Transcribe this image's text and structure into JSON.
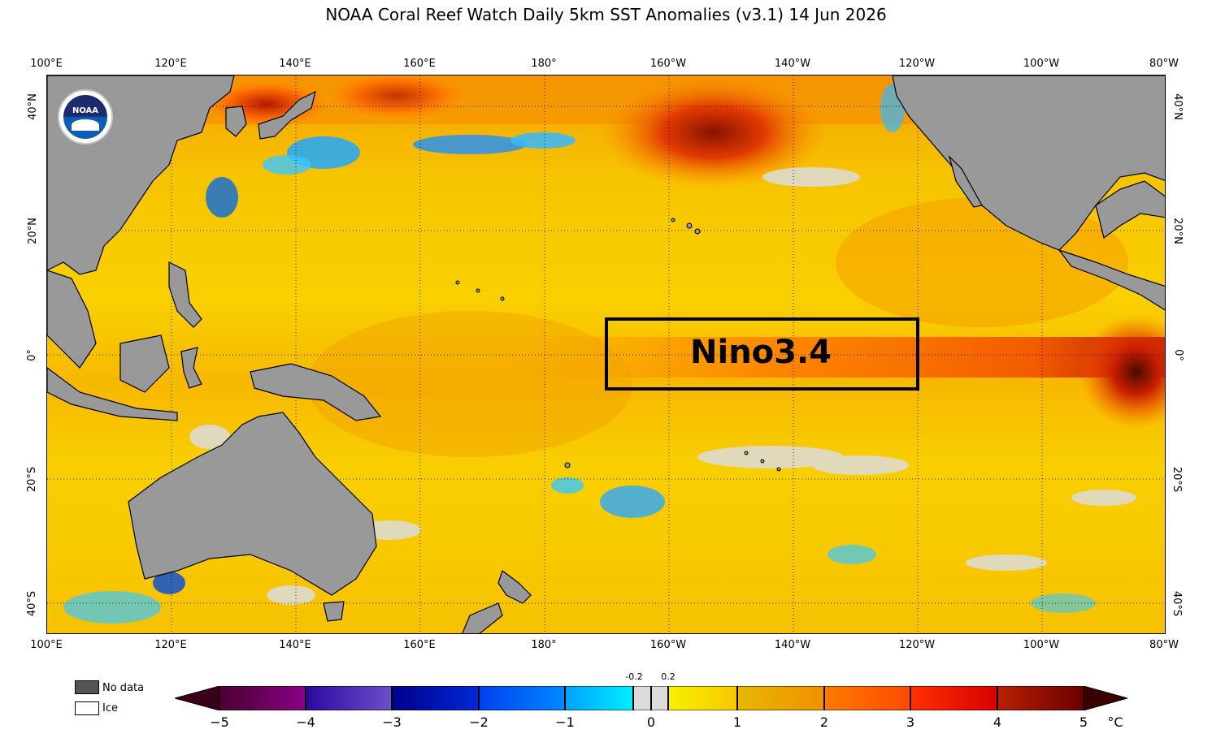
{
  "title": "NOAA Coral Reef Watch Daily 5km SST Anomalies  (v3.1)   14 Jun 2026",
  "lon_labels": [
    "100°E",
    "120°E",
    "140°E",
    "160°E",
    "180°",
    "160°W",
    "140°W",
    "120°W",
    "100°W",
    "80°W"
  ],
  "lat_labels": [
    "40°N",
    "20°N",
    "0°",
    "20°S",
    "40°S"
  ],
  "box_label": "Nino3.4",
  "logo_text": "NOAA",
  "legend": {
    "no_data": "No data",
    "ice": "Ice"
  },
  "colorbar": {
    "ticks": [
      "−5",
      "−4",
      "−3",
      "−2",
      "−1",
      "0",
      "1",
      "2",
      "3",
      "4",
      "5"
    ],
    "small_ticks": [
      "-0.2",
      "0.2"
    ],
    "unit": "°C",
    "colors": {
      "c1": "#5a003a",
      "c2": "#3b1da8",
      "c3": "#0011a8",
      "c4": "#0055f0",
      "c5": "#00c8ff",
      "c6": "#dcdcdc",
      "c7": "#ffe800",
      "c8": "#e8a800",
      "c9": "#ff7a00",
      "c10": "#ff2a00",
      "c11": "#b01000"
    }
  },
  "colors": {
    "land": "#999999",
    "no_data": "#555555",
    "nino_box": "#000000"
  }
}
